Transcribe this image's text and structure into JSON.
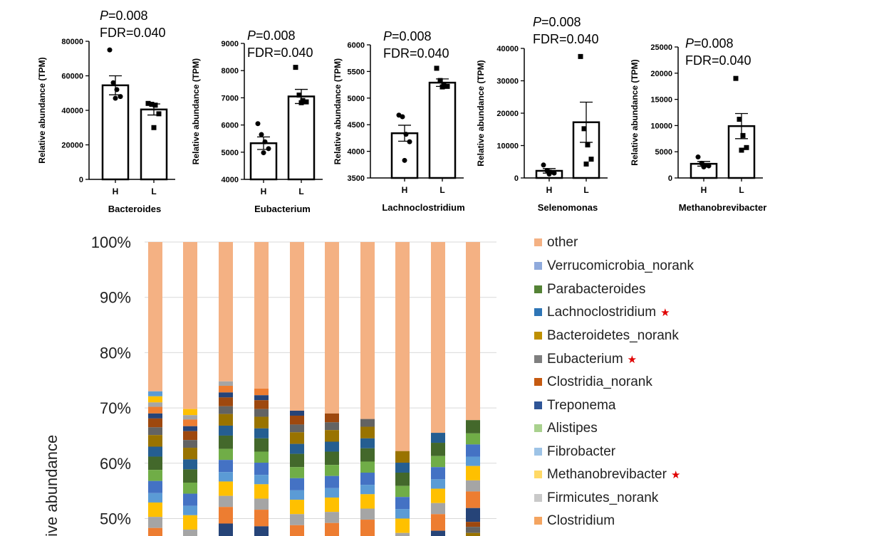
{
  "chart_data": [
    {
      "type": "bar",
      "title": "",
      "xlabel": "Bacteroides",
      "ylabel": "Relative abundance (TPM)",
      "categories": [
        "H",
        "L"
      ],
      "values": [
        54500,
        40500
      ],
      "errors": [
        5500,
        3200
      ],
      "points": [
        [
          75000,
          56000,
          52000,
          48000,
          47000
        ],
        [
          44000,
          43500,
          43000,
          38000,
          30000
        ]
      ],
      "point_marker": [
        "circle",
        "square"
      ],
      "annotation": [
        "P=0.008",
        "FDR=0.040"
      ],
      "ylim": [
        0,
        80000
      ],
      "yticks": [
        0,
        20000,
        40000,
        60000,
        80000
      ],
      "ytick_labels": [
        "0",
        "20000",
        "40000",
        "60000",
        "80000"
      ]
    },
    {
      "type": "bar",
      "title": "",
      "xlabel": "Eubacterium",
      "ylabel": "Relative abundance (TPM)",
      "categories": [
        "H",
        "L"
      ],
      "values": [
        5330,
        7050
      ],
      "errors": [
        230,
        260
      ],
      "points": [
        [
          6050,
          5650,
          5380,
          5130,
          4980
        ],
        [
          8120,
          7100,
          6900,
          6850,
          6820
        ]
      ],
      "point_marker": [
        "circle",
        "square"
      ],
      "annotation": [
        "P=0.008",
        "FDR=0.040"
      ],
      "ylim": [
        4000,
        9000
      ],
      "yticks": [
        4000,
        5000,
        6000,
        7000,
        8000,
        9000
      ],
      "ytick_labels": [
        "4000",
        "5000",
        "6000",
        "7000",
        "8000",
        "9000"
      ]
    },
    {
      "type": "bar",
      "title": "",
      "xlabel": "Lachnoclostridium",
      "ylabel": "Relative abundance (TPM)",
      "categories": [
        "H",
        "L"
      ],
      "values": [
        4340,
        5290
      ],
      "errors": [
        150,
        70
      ],
      "points": [
        [
          4680,
          4650,
          4320,
          4180,
          3830
        ],
        [
          5560,
          5330,
          5250,
          5220,
          5210
        ]
      ],
      "point_marker": [
        "circle",
        "square"
      ],
      "annotation": [
        "P=0.008",
        "FDR=0.040"
      ],
      "ylim": [
        3500,
        6000
      ],
      "yticks": [
        3500,
        4000,
        4500,
        5000,
        5500,
        6000
      ],
      "ytick_labels": [
        "3500",
        "4000",
        "4500",
        "5000",
        "5500",
        "6000"
      ]
    },
    {
      "type": "bar",
      "title": "",
      "xlabel": "Selenomonas",
      "ylabel": "Relative abundance (TPM)",
      "categories": [
        "H",
        "L"
      ],
      "values": [
        2200,
        17200
      ],
      "errors": [
        700,
        6200
      ],
      "points": [
        [
          4000,
          2300,
          1800,
          1500,
          1200
        ],
        [
          37500,
          15200,
          10200,
          5800,
          4300
        ]
      ],
      "point_marker": [
        "circle",
        "square"
      ],
      "annotation": [
        "P=0.008",
        "FDR=0.040"
      ],
      "ylim": [
        0,
        40000
      ],
      "yticks": [
        0,
        10000,
        20000,
        30000,
        40000
      ],
      "ytick_labels": [
        "0",
        "10000",
        "20000",
        "30000",
        "40000"
      ]
    },
    {
      "type": "bar",
      "title": "",
      "xlabel": "Methanobrevibacter",
      "ylabel": "Relative abundance (TPM)",
      "categories": [
        "H",
        "L"
      ],
      "values": [
        2700,
        9900
      ],
      "errors": [
        450,
        2400
      ],
      "points": [
        [
          4000,
          2800,
          2400,
          2300,
          2100
        ],
        [
          19000,
          11200,
          8100,
          5800,
          5300
        ]
      ],
      "point_marker": [
        "circle",
        "square"
      ],
      "annotation": [
        "P=0.008",
        "FDR=0.040"
      ],
      "ylim": [
        0,
        25000
      ],
      "yticks": [
        0,
        5000,
        10000,
        15000,
        20000,
        25000
      ],
      "ytick_labels": [
        "0",
        "5000",
        "10000",
        "15000",
        "20000",
        "25000"
      ]
    },
    {
      "type": "bar",
      "stacked": true,
      "title": "",
      "ylabel": "Relative abundance",
      "ylabel_visible": "tive abundance",
      "ylim": [
        45,
        100
      ],
      "yticks": [
        50,
        60,
        70,
        80,
        90,
        100
      ],
      "ytick_labels": [
        "50%",
        "60%",
        "70%",
        "80%",
        "90%",
        "100%"
      ],
      "grid": true,
      "legend_position": "right",
      "other_start": [
        73,
        69.8,
        74.8,
        73.5,
        69.5,
        69,
        68,
        62.2,
        65.5,
        67.8
      ],
      "segment_colors": [
        "#5b9bd5",
        "#ffc000",
        "#a5a5a5",
        "#ed7d31",
        "#264478",
        "#9e480e",
        "#636363",
        "#997300",
        "#255e91",
        "#43682b",
        "#70ad47",
        "#4472c4"
      ],
      "legend": [
        {
          "label": "other",
          "color": "#f4b183",
          "star": false
        },
        {
          "label": "Verrucomicrobia_norank",
          "color": "#8faadc",
          "star": false
        },
        {
          "label": "Parabacteroides",
          "color": "#548235",
          "star": false
        },
        {
          "label": "Lachnoclostridium",
          "color": "#2e75b6",
          "star": true
        },
        {
          "label": "Bacteroidetes_norank",
          "color": "#bf9000",
          "star": false
        },
        {
          "label": "Eubacterium",
          "color": "#7f7f7f",
          "star": true
        },
        {
          "label": "Clostridia_norank",
          "color": "#c55a11",
          "star": false
        },
        {
          "label": "Treponema",
          "color": "#2f5597",
          "star": false
        },
        {
          "label": "Alistipes",
          "color": "#a9d18e",
          "star": false
        },
        {
          "label": "Fibrobacter",
          "color": "#9dc3e6",
          "star": false
        },
        {
          "label": "Methanobrevibacter",
          "color": "#ffd966",
          "star": true
        },
        {
          "label": "Firmicutes_norank",
          "color": "#c9c9c9",
          "star": false
        },
        {
          "label": "Clostridium",
          "color": "#f4a460",
          "star": false
        }
      ]
    }
  ]
}
